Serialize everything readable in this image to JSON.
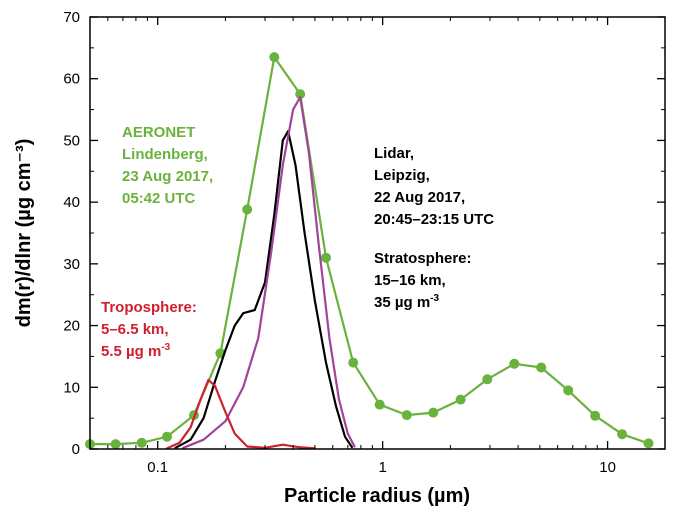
{
  "chart_data": {
    "type": "line",
    "xlabel": "Particle radius (µm)",
    "ylabel": "dm(r)/dlnr (µg cm⁻³)",
    "x_scale": "log",
    "xlim": [
      0.05,
      18
    ],
    "ylim": [
      0,
      70
    ],
    "x_ticks": [
      0.1,
      1,
      10
    ],
    "x_tick_labels": [
      "0.1",
      "1",
      "10"
    ],
    "y_ticks": [
      0,
      10,
      20,
      30,
      40,
      50,
      60,
      70
    ],
    "y_tick_labels": [
      "0",
      "10",
      "20",
      "30",
      "40",
      "50",
      "60",
      "70"
    ],
    "grid": false,
    "series": [
      {
        "color": "#6ab23e",
        "markers": true,
        "points": [
          [
            0.05,
            0.8
          ],
          [
            0.065,
            0.8
          ],
          [
            0.085,
            1.0
          ],
          [
            0.11,
            2.0
          ],
          [
            0.145,
            5.5
          ],
          [
            0.19,
            15.5
          ],
          [
            0.25,
            38.8
          ],
          [
            0.33,
            63.5
          ],
          [
            0.43,
            57.5
          ],
          [
            0.56,
            31.0
          ],
          [
            0.74,
            14.0
          ],
          [
            0.97,
            7.2
          ],
          [
            1.28,
            5.5
          ],
          [
            1.68,
            5.9
          ],
          [
            2.22,
            8.0
          ],
          [
            2.92,
            11.3
          ],
          [
            3.85,
            13.8
          ],
          [
            5.07,
            13.2
          ],
          [
            6.68,
            9.5
          ],
          [
            8.8,
            5.4
          ],
          [
            11.6,
            2.4
          ],
          [
            15.2,
            0.9
          ]
        ]
      },
      {
        "color": "#000000",
        "markers": false,
        "points": [
          [
            0.12,
            0.2
          ],
          [
            0.14,
            1.5
          ],
          [
            0.16,
            5.0
          ],
          [
            0.18,
            11.0
          ],
          [
            0.2,
            16.0
          ],
          [
            0.22,
            20.0
          ],
          [
            0.24,
            22.0
          ],
          [
            0.27,
            22.5
          ],
          [
            0.3,
            27.0
          ],
          [
            0.33,
            38.0
          ],
          [
            0.36,
            50.0
          ],
          [
            0.38,
            51.5
          ],
          [
            0.41,
            46.0
          ],
          [
            0.45,
            35.0
          ],
          [
            0.5,
            24.0
          ],
          [
            0.56,
            14.0
          ],
          [
            0.62,
            7.0
          ],
          [
            0.68,
            2.0
          ],
          [
            0.73,
            0.3
          ]
        ]
      },
      {
        "color": "#a0449a",
        "markers": false,
        "points": [
          [
            0.13,
            0.2
          ],
          [
            0.16,
            1.5
          ],
          [
            0.2,
            4.5
          ],
          [
            0.24,
            10.0
          ],
          [
            0.28,
            18.0
          ],
          [
            0.32,
            32.0
          ],
          [
            0.36,
            46.0
          ],
          [
            0.4,
            55.0
          ],
          [
            0.43,
            57.0
          ],
          [
            0.47,
            48.0
          ],
          [
            0.52,
            33.0
          ],
          [
            0.58,
            18.0
          ],
          [
            0.64,
            8.0
          ],
          [
            0.7,
            2.5
          ],
          [
            0.75,
            0.4
          ]
        ]
      },
      {
        "color": "#d0202e",
        "markers": false,
        "points": [
          [
            0.11,
            0.1
          ],
          [
            0.125,
            1.0
          ],
          [
            0.14,
            3.5
          ],
          [
            0.155,
            8.0
          ],
          [
            0.168,
            11.2
          ],
          [
            0.18,
            10.2
          ],
          [
            0.2,
            6.0
          ],
          [
            0.22,
            2.5
          ],
          [
            0.25,
            0.4
          ],
          [
            0.3,
            0.2
          ],
          [
            0.36,
            0.7
          ],
          [
            0.42,
            0.3
          ],
          [
            0.5,
            0.1
          ]
        ]
      }
    ],
    "annotations": [
      {
        "color": "#6ab23e",
        "lines": [
          "AERONET",
          "Lindenberg,",
          "23 Aug 2017,",
          "05:42 UTC"
        ]
      },
      {
        "color": "#000000",
        "lines": [
          "Lidar,",
          "Leipzig,",
          "22 Aug 2017,",
          "20:45–23:15 UTC"
        ]
      },
      {
        "color": "#000000",
        "lines": [
          "Stratosphere:",
          "15–16 km,"
        ],
        "unit_line": {
          "text": "35 µg m",
          "sup": "-3"
        }
      },
      {
        "color": "#d0202e",
        "lines": [
          "Troposphere:",
          "5–6.5 km,"
        ],
        "unit_line": {
          "text": "5.5 µg m",
          "sup": "-3"
        }
      }
    ]
  }
}
